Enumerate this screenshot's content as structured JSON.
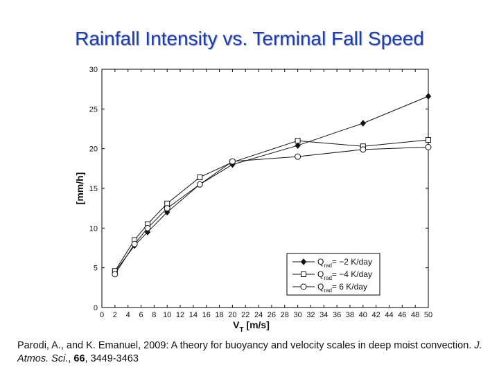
{
  "slide": {
    "title": "Rainfall Intensity vs. Terminal Fall Speed"
  },
  "chart_data": {
    "type": "line",
    "xlabel_main": "V",
    "xlabel_sub": "T",
    "xlabel_unit": " [m/s]",
    "ylabel": "[mm/h]",
    "xlim": [
      0,
      50
    ],
    "ylim": [
      0,
      30
    ],
    "xticks": [
      0,
      2,
      4,
      6,
      8,
      10,
      12,
      14,
      16,
      18,
      20,
      22,
      24,
      26,
      28,
      30,
      32,
      34,
      36,
      38,
      40,
      42,
      44,
      46,
      48,
      50
    ],
    "yticks": [
      0,
      5,
      10,
      15,
      20,
      25,
      30
    ],
    "grid": false,
    "legend_position": "bottom-right",
    "series": [
      {
        "name": "Q",
        "name_sub": "rad",
        "name_tail": "= −2 K/day",
        "marker": "diamond-filled",
        "x": [
          2,
          5,
          7,
          10,
          15,
          20,
          30,
          40,
          50
        ],
        "y": [
          4.5,
          7.8,
          9.5,
          12.0,
          15.5,
          18.0,
          20.4,
          23.2,
          26.6
        ]
      },
      {
        "name": "Q",
        "name_sub": "rad",
        "name_tail": "= −4 K/day",
        "marker": "square-open",
        "x": [
          2,
          5,
          7,
          10,
          15,
          20,
          30,
          40,
          50
        ],
        "y": [
          4.6,
          8.5,
          10.5,
          13.1,
          16.4,
          18.3,
          21.0,
          20.3,
          21.1
        ]
      },
      {
        "name": "Q",
        "name_sub": "rad",
        "name_tail": "=   6 K/day",
        "marker": "circle-open",
        "x": [
          2,
          5,
          7,
          10,
          15,
          20,
          30,
          40,
          50
        ],
        "y": [
          4.2,
          8.0,
          10.0,
          12.5,
          15.5,
          18.4,
          19.0,
          19.9,
          20.2
        ]
      }
    ]
  },
  "citation": {
    "authors": "Parodi, A., and K. Emanuel, 2009: A theory for buoyancy and velocity scales in deep moist convection. ",
    "journal": "J. Atmos. Sci.",
    "sep": ", ",
    "volume": "66",
    "pages": ", 3449-3463"
  }
}
